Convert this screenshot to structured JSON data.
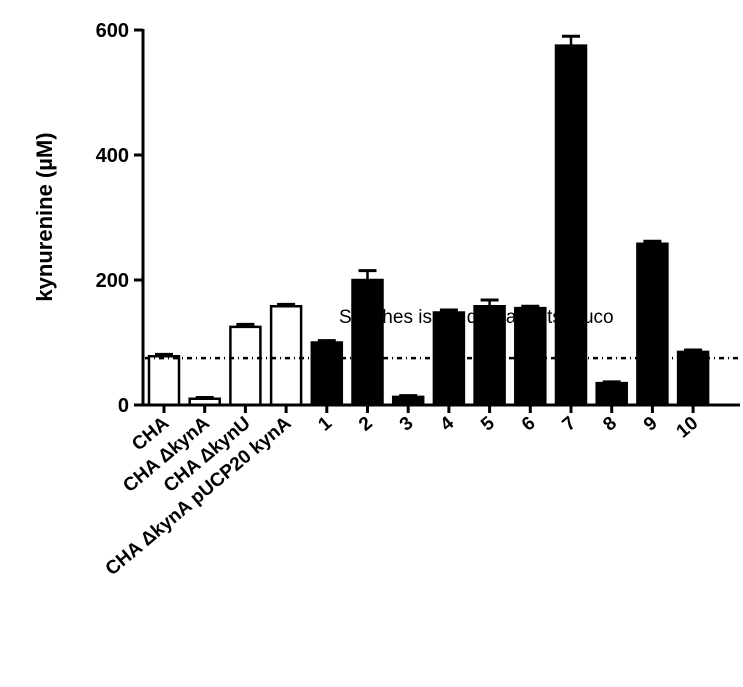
{
  "chart_data": {
    "type": "bar",
    "ylabel": "kynurenine (µM)",
    "ylim": [
      0,
      600
    ],
    "yticks": [
      0,
      200,
      400,
      600
    ],
    "categories": [
      "CHA",
      "CHA ΔkynA",
      "CHA ΔkynU",
      "CHA ΔkynA pUCP20 kynA",
      "1",
      "2",
      "3",
      "4",
      "5",
      "6",
      "7",
      "8",
      "9",
      "10"
    ],
    "values": [
      78,
      10,
      125,
      158,
      100,
      200,
      13,
      148,
      158,
      155,
      575,
      35,
      258,
      85
    ],
    "errors": [
      3,
      2,
      4,
      3,
      3,
      15,
      2,
      4,
      10,
      3,
      15,
      2,
      4,
      3
    ],
    "fills": [
      "#ffffff",
      "#ffffff",
      "#ffffff",
      "#ffffff",
      "#000000",
      "#000000",
      "#000000",
      "#000000",
      "#000000",
      "#000000",
      "#000000",
      "#000000",
      "#000000",
      "#000000"
    ],
    "reference_line": 75,
    "annotation": "Souches issus de Patients muco",
    "grid": false
  }
}
